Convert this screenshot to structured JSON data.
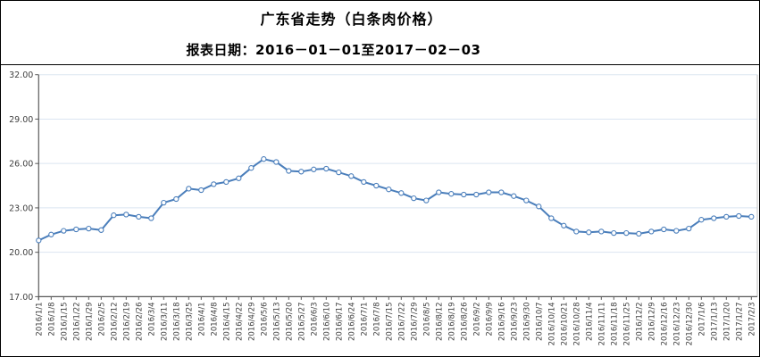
{
  "header": {
    "title": "广东省走势（白条肉价格）",
    "subtitle": "报表日期：2016－01－01至2017－02－03"
  },
  "chart_data": {
    "type": "line",
    "title": "广东省走势（白条肉价格）",
    "subtitle": "报表日期：2016－01－01至2017－02－03",
    "series": [
      {
        "name": "白条肉价格",
        "values": [
          20.8,
          21.2,
          21.45,
          21.55,
          21.6,
          21.5,
          22.5,
          22.55,
          22.4,
          22.3,
          23.35,
          23.6,
          24.3,
          24.2,
          24.6,
          24.75,
          25.0,
          25.7,
          26.3,
          26.1,
          25.5,
          25.45,
          25.6,
          25.65,
          25.4,
          25.15,
          24.75,
          24.5,
          24.25,
          24.0,
          23.65,
          23.5,
          24.05,
          23.95,
          23.9,
          23.9,
          24.05,
          24.05,
          23.8,
          23.5,
          23.1,
          22.3,
          21.8,
          21.4,
          21.35,
          21.4,
          21.3,
          21.3,
          21.25,
          21.4,
          21.55,
          21.45,
          21.6,
          22.2,
          22.3,
          22.4,
          22.45,
          22.4
        ]
      }
    ],
    "categories": [
      "2016/1/1",
      "2016/1/8",
      "2016/1/15",
      "2016/1/22",
      "2016/1/29",
      "2016/2/5",
      "2016/2/12",
      "2016/2/19",
      "2016/2/26",
      "2016/3/4",
      "2016/3/11",
      "2016/3/18",
      "2016/3/25",
      "2016/4/1",
      "2016/4/8",
      "2016/4/15",
      "2016/4/22",
      "2016/4/29",
      "2016/5/6",
      "2016/5/13",
      "2016/5/20",
      "2016/5/27",
      "2016/6/3",
      "2016/6/10",
      "2016/6/17",
      "2016/6/24",
      "2016/7/1",
      "2016/7/8",
      "2016/7/15",
      "2016/7/22",
      "2016/7/29",
      "2016/8/5",
      "2016/8/12",
      "2016/8/19",
      "2016/8/26",
      "2016/9/2",
      "2016/9/9",
      "2016/9/16",
      "2016/9/23",
      "2016/9/30",
      "2016/10/7",
      "2016/10/14",
      "2016/10/21",
      "2016/10/28",
      "2016/11/4",
      "2016/11/11",
      "2016/11/18",
      "2016/11/25",
      "2016/12/2",
      "2016/12/9",
      "2016/12/16",
      "2016/12/23",
      "2016/12/30",
      "2017/1/6",
      "2017/1/13",
      "2017/1/20",
      "2017/1/27",
      "2017/2/3"
    ],
    "y_ticks": [
      {
        "value": 32,
        "label": "32.00"
      },
      {
        "value": 29,
        "label": "29.00"
      },
      {
        "value": 26,
        "label": "26.00"
      },
      {
        "value": 23,
        "label": "23.00"
      },
      {
        "value": 20,
        "label": "20.00"
      },
      {
        "value": 17,
        "label": "17.00"
      }
    ],
    "ylim": [
      17,
      32
    ],
    "xlabel": "",
    "ylabel": "",
    "grid": true,
    "legend_position": "none",
    "colors": {
      "line": "#4a7ebb",
      "marker_fill": "#ffffff",
      "grid": "#dbe5f1",
      "axis": "#595959",
      "plot_border": "#bfbfbf",
      "tick_label": "#404040"
    }
  }
}
